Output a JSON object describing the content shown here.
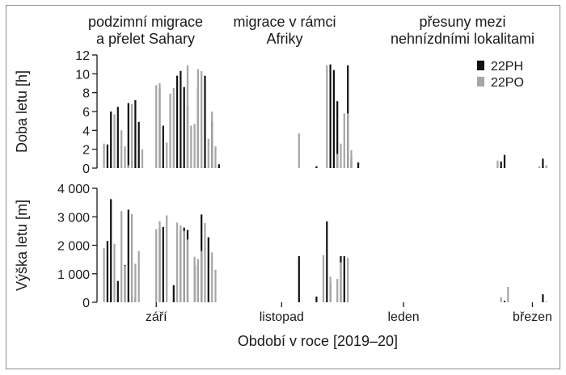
{
  "chart_data": {
    "type": "bar",
    "xlabel": "Období v roce [2019–20]",
    "x_ticks": [
      "září",
      "listopad",
      "leden",
      "březen"
    ],
    "phases": [
      [
        "podzimní migrace",
        "a přelet Sahary"
      ],
      [
        "migrace v rámci",
        "Afriky"
      ],
      [
        "přesuny mezi",
        "nehnízdními lokalitami"
      ]
    ],
    "colors": {
      "22PH": "#111111",
      "22PO": "#a6a6a6"
    },
    "panels": [
      {
        "id": "duration",
        "ylabel": "Doba letu [h]",
        "ylim": [
          0,
          12
        ],
        "yticks": [
          {
            "v": 0,
            "label": "0"
          },
          {
            "v": 2,
            "label": "2"
          },
          {
            "v": 4,
            "label": "4"
          },
          {
            "v": 6,
            "label": "6"
          },
          {
            "v": 8,
            "label": "8"
          },
          {
            "v": 10,
            "label": "10"
          },
          {
            "v": 12,
            "label": "12"
          }
        ],
        "legend": [
          "22PH",
          "22PO"
        ],
        "series": [
          {
            "name": "22PH",
            "points": [
              [
                3,
                2.5
              ],
              [
                4,
                6.0
              ],
              [
                6,
                6.5
              ],
              [
                9,
                6.9
              ],
              [
                10,
                0.8
              ],
              [
                11,
                7.2
              ],
              [
                12,
                4.9
              ],
              [
                18,
                8.5
              ],
              [
                19,
                4.5
              ],
              [
                23,
                9.8
              ],
              [
                24,
                10.3
              ],
              [
                25,
                8.6
              ],
              [
                26,
                6.6
              ],
              [
                29,
                8.6
              ],
              [
                31,
                9.8
              ],
              [
                33,
                5.0
              ],
              [
                35,
                0.4
              ],
              [
                63,
                0.2
              ],
              [
                67,
                11.0
              ],
              [
                68,
                10.4
              ],
              [
                69,
                7.1
              ],
              [
                72,
                10.9
              ],
              [
                73,
                1.1
              ],
              [
                75,
                0.6
              ],
              [
                116,
                0.7
              ],
              [
                117,
                1.4
              ],
              [
                128,
                1.0
              ]
            ]
          },
          {
            "name": "22PO",
            "points": [
              [
                2,
                2.6
              ],
              [
                5,
                5.7
              ],
              [
                7,
                4.0
              ],
              [
                8,
                2.3
              ],
              [
                9,
                0.3
              ],
              [
                10,
                6.8
              ],
              [
                13,
                2.0
              ],
              [
                17,
                8.8
              ],
              [
                18,
                9.0
              ],
              [
                20,
                2.7
              ],
              [
                21,
                7.9
              ],
              [
                22,
                8.5
              ],
              [
                26,
                10.9
              ],
              [
                27,
                4.5
              ],
              [
                28,
                4.7
              ],
              [
                29,
                10.5
              ],
              [
                30,
                10.3
              ],
              [
                32,
                3.1
              ],
              [
                33,
                6.0
              ],
              [
                34,
                2.3
              ],
              [
                58,
                3.7
              ],
              [
                66,
                10.9
              ],
              [
                69,
                1.5
              ],
              [
                70,
                2.6
              ],
              [
                71,
                5.8
              ],
              [
                72,
                5.8
              ],
              [
                73,
                1.9
              ],
              [
                115,
                0.8
              ],
              [
                127,
                0.2
              ],
              [
                129,
                0.3
              ]
            ]
          }
        ]
      },
      {
        "id": "altitude",
        "ylabel": "Výška letu [m]",
        "ylim": [
          0,
          4000
        ],
        "yticks": [
          {
            "v": 0,
            "label": "0"
          },
          {
            "v": 1000,
            "label": "1 000"
          },
          {
            "v": 2000,
            "label": "2 000"
          },
          {
            "v": 3000,
            "label": "3 000"
          },
          {
            "v": 4000,
            "label": "4 000"
          }
        ],
        "series": [
          {
            "name": "22PH",
            "points": [
              [
                3,
                2150
              ],
              [
                4,
                3620
              ],
              [
                6,
                750
              ],
              [
                8,
                1300
              ],
              [
                9,
                3250
              ],
              [
                10,
                250
              ],
              [
                11,
                150
              ],
              [
                18,
                2600
              ],
              [
                19,
                2640
              ],
              [
                22,
                600
              ],
              [
                24,
                2500
              ],
              [
                25,
                2620
              ],
              [
                26,
                2540
              ],
              [
                28,
                1270
              ],
              [
                29,
                1340
              ],
              [
                30,
                3080
              ],
              [
                32,
                2280
              ],
              [
                58,
                1620
              ],
              [
                63,
                200
              ],
              [
                66,
                2840
              ],
              [
                67,
                650
              ],
              [
                70,
                1620
              ],
              [
                71,
                1620
              ],
              [
                117,
                50
              ],
              [
                128,
                280
              ]
            ]
          },
          {
            "name": "22PO",
            "points": [
              [
                2,
                1900
              ],
              [
                5,
                2050
              ],
              [
                7,
                3200
              ],
              [
                8,
                1270
              ],
              [
                10,
                3100
              ],
              [
                11,
                1350
              ],
              [
                12,
                1800
              ],
              [
                17,
                2570
              ],
              [
                18,
                2850
              ],
              [
                20,
                3050
              ],
              [
                23,
                2800
              ],
              [
                24,
                2700
              ],
              [
                25,
                2500
              ],
              [
                26,
                2200
              ],
              [
                28,
                1600
              ],
              [
                29,
                1520
              ],
              [
                30,
                1800
              ],
              [
                31,
                2780
              ],
              [
                33,
                1750
              ],
              [
                34,
                1140
              ],
              [
                65,
                1660
              ],
              [
                67,
                900
              ],
              [
                69,
                820
              ],
              [
                70,
                1400
              ],
              [
                72,
                1560
              ],
              [
                116,
                180
              ],
              [
                118,
                540
              ],
              [
                129,
                30
              ]
            ]
          }
        ]
      }
    ]
  }
}
